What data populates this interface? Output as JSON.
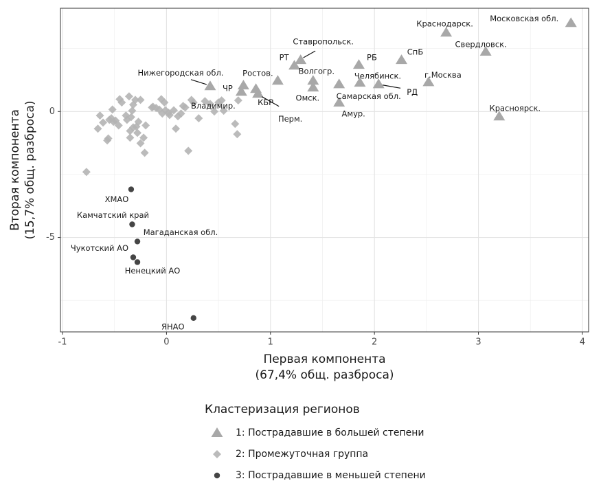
{
  "chart_data": {
    "type": "scatter",
    "x_label": [
      "Первая компонента",
      "(67,4% общ. разброса)"
    ],
    "y_label": [
      "Вторая компонента",
      "(15,7% общ. разброса)"
    ],
    "xlim": [
      -1.02,
      4.06
    ],
    "ylim": [
      -8.75,
      4.1
    ],
    "xticks": [
      -1,
      0,
      1,
      2,
      3,
      4
    ],
    "yticks": [
      -5,
      0
    ],
    "x_minor_ticks": [
      -0.5,
      0.5,
      1.5,
      2.5,
      3.5
    ],
    "y_minor_ticks": [
      -7.5,
      -2.5,
      2.5
    ],
    "grid": true,
    "legend_title": "Кластеризация регионов",
    "legend_position": "bottom",
    "series": [
      {
        "name": "1: Пострадавшие в большей степени",
        "color": "#a8a8a8",
        "marker": "triangle",
        "x": [
          3.89,
          2.69,
          3.07,
          2.26,
          1.85,
          1.29,
          1.23,
          1.41,
          1.41,
          1.07,
          0.42,
          0.74,
          0.72,
          0.86,
          0.88,
          1.66,
          1.86,
          2.04,
          2.52,
          1.66,
          3.2
        ],
        "y": [
          3.52,
          3.14,
          2.38,
          2.05,
          1.86,
          2.05,
          1.83,
          1.23,
          0.96,
          1.23,
          1.01,
          1.04,
          0.79,
          0.9,
          0.71,
          1.09,
          1.15,
          1.09,
          1.17,
          0.36,
          -0.19
        ],
        "labels": [
          "Московская обл.",
          "Краснодарск.",
          "Свердловск.",
          "СпБ",
          "РБ",
          "Ставропольск.",
          "РТ",
          "Волгогр.",
          "Омск.",
          "Ростов.",
          "Нижегородская обл.",
          "ЧР",
          "Владимир.",
          "КБР",
          "Перм.",
          "Самарская обл.",
          "Челябинск.",
          "РД",
          "г.Москва",
          "Амур.",
          "Красноярск."
        ]
      },
      {
        "name": "2: Промежуточная группа",
        "color": "#b4b4b4",
        "marker": "diamond",
        "x": [
          -0.77,
          -0.66,
          -0.64,
          -0.61,
          -0.57,
          -0.56,
          -0.55,
          -0.53,
          -0.52,
          -0.51,
          -0.49,
          -0.46,
          -0.45,
          -0.43,
          -0.39,
          -0.38,
          -0.36,
          -0.35,
          -0.35,
          -0.34,
          -0.33,
          -0.32,
          -0.32,
          -0.3,
          -0.29,
          -0.28,
          -0.27,
          -0.25,
          -0.25,
          -0.22,
          -0.21,
          -0.2,
          -0.14,
          -0.13,
          -0.1,
          -0.07,
          -0.05,
          -0.04,
          -0.02,
          -0.01,
          0.02,
          0.03,
          0.07,
          0.09,
          0.11,
          0.14,
          0.16,
          0.18,
          0.21,
          0.24,
          0.26,
          0.31,
          0.37,
          0.42,
          0.46,
          0.5,
          0.53,
          0.55,
          0.66,
          0.68,
          0.69
        ],
        "y": [
          -2.4,
          -0.68,
          -0.16,
          -0.44,
          -1.15,
          -1.07,
          -0.33,
          -0.27,
          0.08,
          -0.41,
          -0.36,
          -0.55,
          0.49,
          0.36,
          -0.16,
          -0.33,
          0.6,
          -0.77,
          -1.04,
          -0.22,
          0.03,
          0.27,
          -0.63,
          0.46,
          -0.6,
          -0.85,
          -0.41,
          0.46,
          -1.26,
          -1.04,
          -1.64,
          -0.55,
          0.16,
          0.19,
          0.14,
          0.08,
          0.49,
          -0.08,
          0.36,
          0.05,
          -0.05,
          -0.14,
          0.05,
          -0.68,
          -0.19,
          -0.08,
          0.22,
          0.16,
          -1.56,
          0.46,
          0.36,
          -0.27,
          0.41,
          0.3,
          0.0,
          0.36,
          0.44,
          0.03,
          -0.49,
          -0.9,
          0.44
        ]
      },
      {
        "name": "3: Пострадавшие в меньшей степени",
        "color": "#454545",
        "marker": "circle",
        "x": [
          -0.34,
          -0.33,
          -0.28,
          -0.32,
          -0.28,
          0.26
        ],
        "y": [
          -3.09,
          -4.48,
          -5.16,
          -5.79,
          -5.98,
          -8.2
        ],
        "labels": [
          "ХМАО",
          "Камчатский край",
          "Магаданская обл.",
          "Чукотский АО",
          "Ненецкий АО",
          "ЯНАО"
        ]
      }
    ]
  }
}
